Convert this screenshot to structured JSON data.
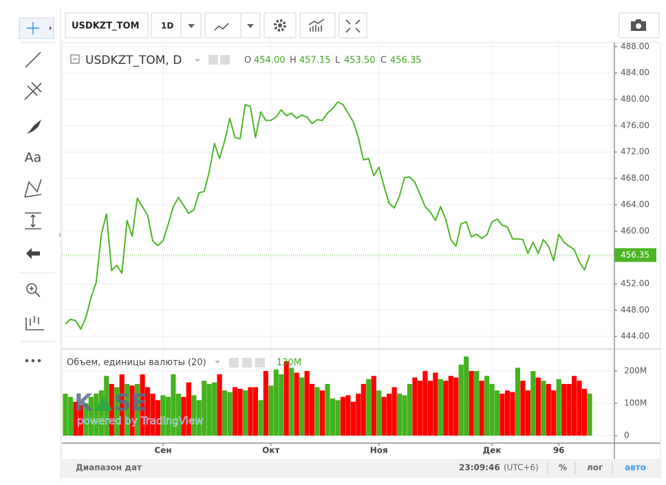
{
  "toolbar": {
    "symbol": "USDKZT_TOM",
    "interval": "1D"
  },
  "left_toolbar": {
    "text_tool": "Aa"
  },
  "watermark": {
    "left": "K",
    "right": "SE",
    "caption": "powered by TradingView"
  },
  "chart_data": {
    "type": "line",
    "title": "USDKZT_TOM, D",
    "ohlc": [
      {
        "label": "O",
        "value": "454.00"
      },
      {
        "label": "H",
        "value": "457.15"
      },
      {
        "label": "L",
        "value": "453.50"
      },
      {
        "label": "C",
        "value": "456.35"
      }
    ],
    "color": "#4cb526",
    "values": [
      445.9,
      446.6,
      446.4,
      445.1,
      446.9,
      449.9,
      452.2,
      459.5,
      462.6,
      454.0,
      454.8,
      453.6,
      461.6,
      459.2,
      465.0,
      463.7,
      462.4,
      458.5,
      457.8,
      458.5,
      461.0,
      463.7,
      465.1,
      463.9,
      462.7,
      463.2,
      465.8,
      466.0,
      469.0,
      473.3,
      471.0,
      473.7,
      477.1,
      474.2,
      474.0,
      479.2,
      478.9,
      474.2,
      478.1,
      476.8,
      476.8,
      477.3,
      478.4,
      477.5,
      477.9,
      477.1,
      477.6,
      477.3,
      476.3,
      476.9,
      476.8,
      477.9,
      478.6,
      479.6,
      479.2,
      477.9,
      476.6,
      474.2,
      470.8,
      471.0,
      468.4,
      469.7,
      466.8,
      464.2,
      463.5,
      465.3,
      468.1,
      468.2,
      467.4,
      465.6,
      463.7,
      462.9,
      461.6,
      463.7,
      461.8,
      458.7,
      457.7,
      461.1,
      461.4,
      459.1,
      459.5,
      458.9,
      459.4,
      461.4,
      461.8,
      460.9,
      460.6,
      458.8,
      458.8,
      458.7,
      456.6,
      458.3,
      456.6,
      458.7,
      457.7,
      455.5,
      459.5,
      458.3,
      457.7,
      457.2,
      455.3,
      454.1,
      456.35
    ],
    "xlim": [
      0,
      102
    ],
    "xticks": [
      {
        "value": 19,
        "label": "Сен"
      },
      {
        "value": 40,
        "label": "Окт"
      },
      {
        "value": 61,
        "label": "Ноя"
      },
      {
        "value": 83,
        "label": "Дек"
      },
      96
    ],
    "ylim": [
      442.2,
      488.5
    ],
    "yticks": [
      {
        "value": 444,
        "label": "444.00"
      },
      {
        "value": 448,
        "label": "448.00"
      },
      {
        "value": 452,
        "label": "452.00"
      },
      {
        "value": 456,
        "label": "456.00"
      },
      {
        "value": 460,
        "label": "460.00"
      },
      {
        "value": 464,
        "label": "464.00"
      },
      {
        "value": 468,
        "label": "468.00"
      },
      {
        "value": 472,
        "label": "472.00"
      },
      {
        "value": 476,
        "label": "476.00"
      },
      {
        "value": 480,
        "label": "480.00"
      },
      {
        "value": 484,
        "label": "484.00"
      },
      {
        "value": 488,
        "label": "488.00"
      }
    ],
    "grid": true,
    "last_price": {
      "value": 456.35,
      "label": "456.35"
    },
    "volume": {
      "type": "bar",
      "title": "Объем, единицы валюты (20)",
      "up_color": "#44b21f",
      "down_color": "#ff0000",
      "values": [
        130000000,
        120000000,
        105000000,
        95000000,
        100000000,
        120000000,
        130000000,
        140000000,
        185000000,
        160000000,
        150000000,
        190000000,
        160000000,
        155000000,
        160000000,
        190000000,
        150000000,
        130000000,
        110000000,
        125000000,
        120000000,
        190000000,
        130000000,
        120000000,
        165000000,
        125000000,
        110000000,
        170000000,
        160000000,
        165000000,
        190000000,
        140000000,
        135000000,
        150000000,
        145000000,
        140000000,
        150000000,
        150000000,
        110000000,
        200000000,
        155000000,
        205000000,
        190000000,
        230000000,
        210000000,
        195000000,
        180000000,
        200000000,
        160000000,
        150000000,
        140000000,
        160000000,
        115000000,
        110000000,
        120000000,
        125000000,
        105000000,
        130000000,
        160000000,
        175000000,
        185000000,
        140000000,
        120000000,
        130000000,
        150000000,
        130000000,
        125000000,
        160000000,
        180000000,
        170000000,
        200000000,
        170000000,
        195000000,
        175000000,
        170000000,
        185000000,
        180000000,
        220000000,
        245000000,
        200000000,
        200000000,
        170000000,
        185000000,
        160000000,
        140000000,
        130000000,
        140000000,
        135000000,
        210000000,
        170000000,
        140000000,
        200000000,
        180000000,
        170000000,
        160000000,
        140000000,
        175000000,
        160000000,
        160000000,
        185000000,
        170000000,
        145000000,
        130000000
      ],
      "value_label": "130M",
      "ylim": [
        -23000000,
        264000000
      ],
      "yticks": [
        0,
        {
          "value": 100000000,
          "label": "100M"
        },
        {
          "value": 200000000,
          "label": "200M"
        }
      ]
    }
  },
  "bottom_bar": {
    "date_range": "Диапазон дат",
    "time": "23:09:46",
    "timezone": "(UTC+6)",
    "percent": "%",
    "log": "лог",
    "auto": "авто"
  }
}
